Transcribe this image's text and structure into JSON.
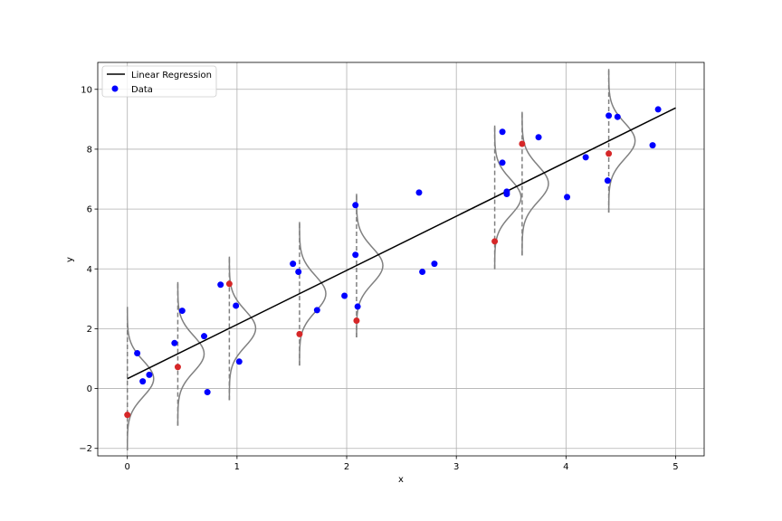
{
  "chart_data": {
    "type": "scatter",
    "title": "",
    "xlabel": "x",
    "ylabel": "y",
    "xlim": [
      -0.27,
      5.26
    ],
    "ylim": [
      -2.25,
      10.9
    ],
    "xticks": [
      0,
      1,
      2,
      3,
      4,
      5
    ],
    "yticks": [
      -2,
      0,
      2,
      4,
      6,
      8,
      10
    ],
    "grid": true,
    "legend_position": "upper-left",
    "legend": [
      {
        "label": "Linear Regression",
        "kind": "line",
        "color": "#000000"
      },
      {
        "label": "Data",
        "kind": "marker",
        "color": "#0000ff"
      }
    ],
    "regression_line": {
      "name": "Linear Regression",
      "x": [
        0,
        5
      ],
      "y": [
        0.33,
        9.38
      ],
      "color": "#000000"
    },
    "series": [
      {
        "name": "Data",
        "color": "#0000ff",
        "points": [
          [
            0.09,
            1.18
          ],
          [
            0.14,
            0.24
          ],
          [
            0.2,
            0.46
          ],
          [
            0.43,
            1.52
          ],
          [
            0.5,
            2.6
          ],
          [
            0.7,
            1.75
          ],
          [
            0.73,
            -0.12
          ],
          [
            0.85,
            3.47
          ],
          [
            0.99,
            2.77
          ],
          [
            1.02,
            0.9
          ],
          [
            1.51,
            4.17
          ],
          [
            1.56,
            3.9
          ],
          [
            1.73,
            2.62
          ],
          [
            1.98,
            3.1
          ],
          [
            2.08,
            6.13
          ],
          [
            2.08,
            4.47
          ],
          [
            2.1,
            2.74
          ],
          [
            2.66,
            6.55
          ],
          [
            2.69,
            3.9
          ],
          [
            2.8,
            4.17
          ],
          [
            3.42,
            8.58
          ],
          [
            3.42,
            7.55
          ],
          [
            3.46,
            6.5
          ],
          [
            3.46,
            6.58
          ],
          [
            3.75,
            8.4
          ],
          [
            4.01,
            6.4
          ],
          [
            4.18,
            7.73
          ],
          [
            4.38,
            6.95
          ],
          [
            4.39,
            9.12
          ],
          [
            4.47,
            9.08
          ],
          [
            4.79,
            8.13
          ],
          [
            4.84,
            9.33
          ]
        ]
      },
      {
        "name": "",
        "color": "#d62728",
        "points": [
          [
            0.0,
            -0.88
          ],
          [
            0.46,
            0.72
          ],
          [
            0.93,
            3.5
          ],
          [
            1.57,
            1.82
          ],
          [
            2.09,
            2.27
          ],
          [
            3.35,
            4.92
          ],
          [
            3.6,
            8.18
          ],
          [
            4.39,
            7.85
          ]
        ]
      }
    ],
    "distributions": {
      "color": "#808080",
      "sigma": 0.6,
      "peak_width_x": 0.24,
      "half_span_y": 2.4,
      "centers": [
        [
          0.0,
          0.33
        ],
        [
          0.46,
          1.16
        ],
        [
          0.93,
          2.01
        ],
        [
          1.57,
          3.17
        ],
        [
          2.09,
          4.11
        ],
        [
          3.35,
          6.39
        ],
        [
          3.6,
          6.85
        ],
        [
          4.39,
          8.28
        ]
      ]
    }
  }
}
